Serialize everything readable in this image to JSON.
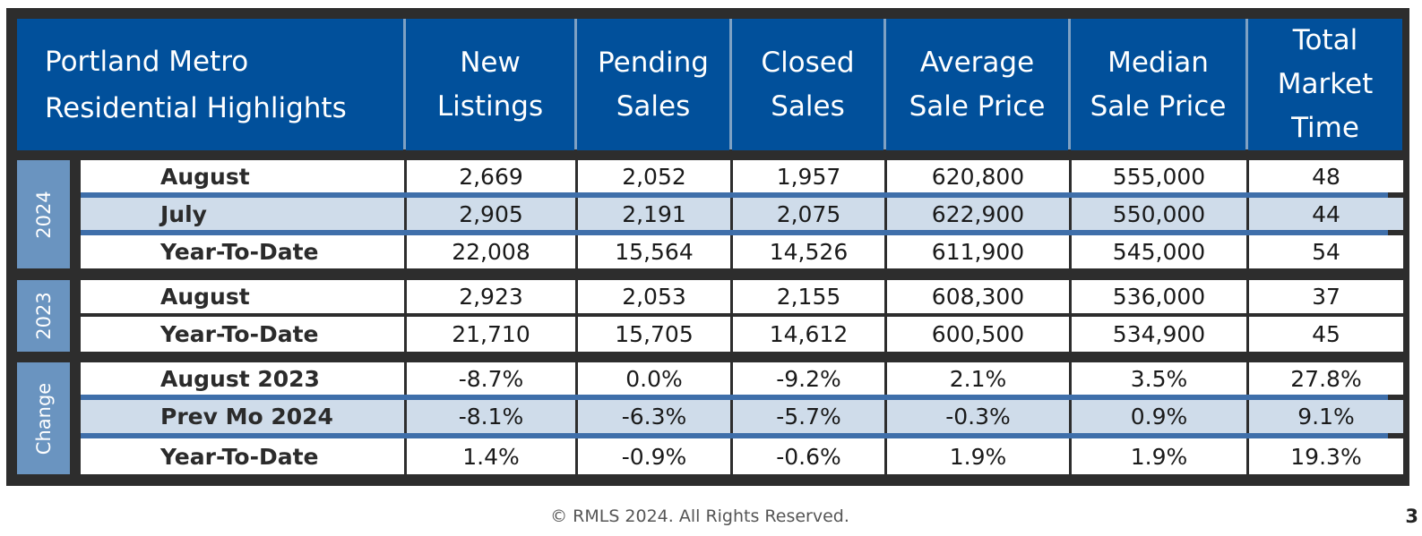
{
  "header": {
    "title": "Portland Metro\nResidential Highlights",
    "columns": [
      "New\nListings",
      "Pending\nSales",
      "Closed\nSales",
      "Average\nSale Price",
      "Median\nSale Price",
      "Total\nMarket\nTime"
    ]
  },
  "groups": [
    {
      "label": "2024",
      "rows": [
        {
          "label": "August",
          "values": [
            "2,669",
            "2,052",
            "1,957",
            "620,800",
            "555,000",
            "48"
          ]
        },
        {
          "label": "July",
          "values": [
            "2,905",
            "2,191",
            "2,075",
            "622,900",
            "550,000",
            "44"
          ]
        },
        {
          "label": "Year-To-Date",
          "values": [
            "22,008",
            "15,564",
            "14,526",
            "611,900",
            "545,000",
            "54"
          ]
        }
      ]
    },
    {
      "label": "2023",
      "rows": [
        {
          "label": "August",
          "values": [
            "2,923",
            "2,053",
            "2,155",
            "608,300",
            "536,000",
            "37"
          ]
        },
        {
          "label": "Year-To-Date",
          "values": [
            "21,710",
            "15,705",
            "14,612",
            "600,500",
            "534,900",
            "45"
          ]
        }
      ]
    },
    {
      "label": "Change",
      "rows": [
        {
          "label": "August 2023",
          "values": [
            "-8.7%",
            "0.0%",
            "-9.2%",
            "2.1%",
            "3.5%",
            "27.8%"
          ]
        },
        {
          "label": "Prev Mo 2024",
          "values": [
            "-8.1%",
            "-6.3%",
            "-5.7%",
            "-0.3%",
            "0.9%",
            "9.1%"
          ]
        },
        {
          "label": "Year-To-Date",
          "values": [
            "1.4%",
            "-0.9%",
            "-0.6%",
            "1.9%",
            "1.9%",
            "19.3%"
          ]
        }
      ]
    }
  ],
  "footer": {
    "copyright": "© RMLS 2024. All Rights Reserved.",
    "page_number": "3"
  },
  "colors": {
    "header_bg": "#01509b",
    "year_label_bg": "#6a94c0",
    "shaded_row": "#cfdcea",
    "divider": "#3f6faa",
    "frame": "#2d2d2d"
  }
}
